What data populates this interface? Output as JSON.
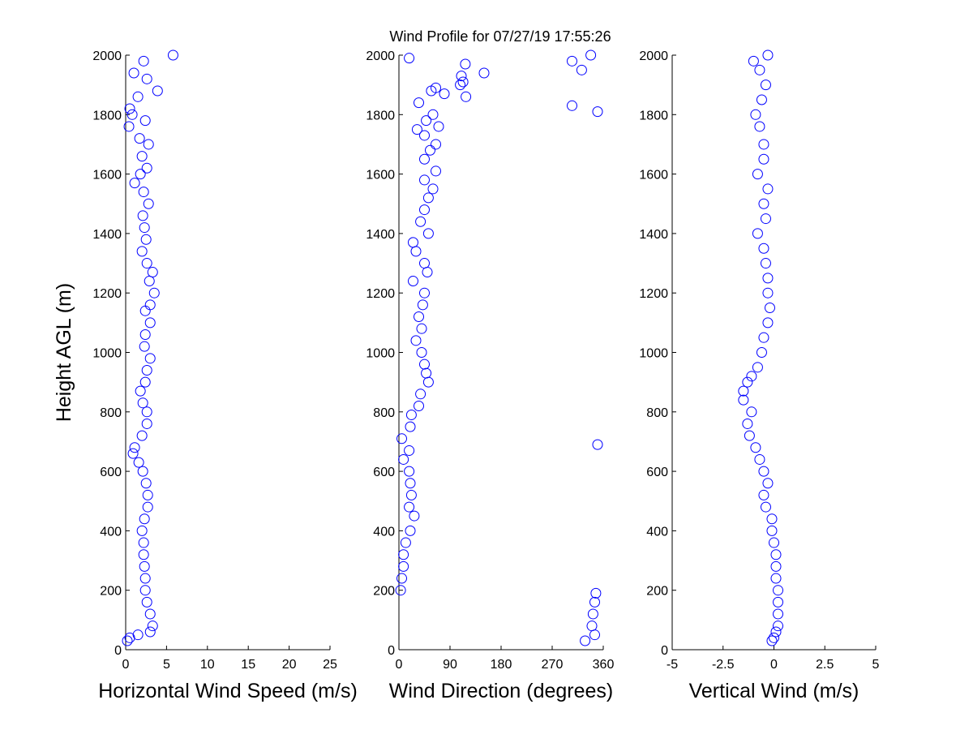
{
  "chart_data": [
    {
      "type": "scatter",
      "title": "Wind Profile for  07/27/19 17:55:26",
      "xlabel": "Horizontal Wind Speed (m/s)",
      "ylabel": "Height AGL (m)",
      "color": "#0000ff",
      "xlim": [
        0,
        25
      ],
      "xticks": [
        0,
        5,
        10,
        15,
        20,
        25
      ],
      "ylim": [
        0,
        2000
      ],
      "yticks": [
        0,
        200,
        400,
        600,
        800,
        1000,
        1200,
        1400,
        1600,
        1800,
        2000
      ],
      "x": [
        5.8,
        2.2,
        1.0,
        2.6,
        3.9,
        1.5,
        0.5,
        0.8,
        2.4,
        0.4,
        1.7,
        2.8,
        2.0,
        2.6,
        1.8,
        1.1,
        2.2,
        2.8,
        2.1,
        2.3,
        2.5,
        2.0,
        2.6,
        3.3,
        2.9,
        3.5,
        3.0,
        2.4,
        3.0,
        2.4,
        2.3,
        3.0,
        2.6,
        2.4,
        1.8,
        2.1,
        2.6,
        2.6,
        2.0,
        1.1,
        0.9,
        1.6,
        2.1,
        2.5,
        2.7,
        2.7,
        2.3,
        2.0,
        2.2,
        2.2,
        2.3,
        2.4,
        2.4,
        2.6,
        3.0,
        3.3,
        3.0,
        1.5,
        0.5,
        0.2
      ],
      "y": [
        2000,
        1980,
        1940,
        1920,
        1880,
        1860,
        1820,
        1800,
        1780,
        1760,
        1720,
        1700,
        1660,
        1620,
        1600,
        1570,
        1540,
        1500,
        1460,
        1420,
        1380,
        1340,
        1300,
        1270,
        1240,
        1200,
        1160,
        1140,
        1100,
        1060,
        1020,
        980,
        940,
        900,
        870,
        830,
        800,
        760,
        720,
        680,
        660,
        630,
        600,
        560,
        520,
        480,
        440,
        400,
        360,
        320,
        280,
        240,
        200,
        160,
        120,
        80,
        60,
        50,
        40,
        30
      ]
    },
    {
      "type": "scatter",
      "xlabel": "Wind Direction (degrees)",
      "color": "#0000ff",
      "xlim": [
        0,
        360
      ],
      "xticks": [
        0,
        90,
        180,
        270,
        360
      ],
      "ylim": [
        0,
        2000
      ],
      "yticks": [
        0,
        200,
        400,
        600,
        800,
        1000,
        1200,
        1400,
        1600,
        1800,
        2000
      ],
      "x": [
        338,
        18,
        305,
        117,
        322,
        150,
        110,
        113,
        108,
        65,
        57,
        80,
        118,
        35,
        305,
        350,
        60,
        48,
        70,
        32,
        45,
        65,
        55,
        45,
        65,
        45,
        60,
        52,
        45,
        38,
        52,
        25,
        30,
        45,
        50,
        25,
        45,
        42,
        35,
        40,
        30,
        40,
        45,
        48,
        52,
        38,
        35,
        22,
        20,
        5,
        350,
        18,
        8,
        18,
        20,
        22,
        18,
        27,
        20,
        12,
        8,
        8,
        5,
        3,
        347,
        345,
        342,
        340,
        345,
        328
      ],
      "y": [
        2000,
        1990,
        1980,
        1970,
        1950,
        1940,
        1930,
        1910,
        1900,
        1890,
        1880,
        1870,
        1860,
        1840,
        1830,
        1810,
        1800,
        1780,
        1760,
        1750,
        1730,
        1700,
        1680,
        1650,
        1610,
        1580,
        1550,
        1520,
        1480,
        1440,
        1400,
        1370,
        1340,
        1300,
        1270,
        1240,
        1200,
        1160,
        1120,
        1080,
        1040,
        1000,
        960,
        930,
        900,
        860,
        820,
        790,
        750,
        710,
        690,
        670,
        640,
        600,
        560,
        520,
        480,
        450,
        400,
        360,
        320,
        280,
        240,
        200,
        190,
        160,
        120,
        80,
        50,
        30
      ]
    },
    {
      "type": "scatter",
      "xlabel": "Vertical Wind (m/s)",
      "color": "#0000ff",
      "xlim": [
        -5,
        5
      ],
      "xticks": [
        -5,
        -2.5,
        0,
        2.5,
        5
      ],
      "ylim": [
        0,
        2000
      ],
      "yticks": [
        0,
        200,
        400,
        600,
        800,
        1000,
        1200,
        1400,
        1600,
        1800,
        2000
      ],
      "x": [
        -0.3,
        -1.0,
        -0.7,
        -0.4,
        -0.6,
        -0.9,
        -0.7,
        -0.5,
        -0.5,
        -0.8,
        -0.3,
        -0.5,
        -0.4,
        -0.8,
        -0.5,
        -0.4,
        -0.3,
        -0.3,
        -0.2,
        -0.3,
        -0.5,
        -0.6,
        -0.8,
        -1.1,
        -1.3,
        -1.5,
        -1.5,
        -1.1,
        -1.3,
        -1.2,
        -0.9,
        -0.7,
        -0.5,
        -0.3,
        -0.5,
        -0.4,
        -0.1,
        -0.1,
        0.0,
        0.1,
        0.1,
        0.1,
        0.2,
        0.2,
        0.2,
        0.2,
        0.1,
        0.0,
        -0.1
      ],
      "y": [
        2000,
        1980,
        1950,
        1900,
        1850,
        1800,
        1760,
        1700,
        1650,
        1600,
        1550,
        1500,
        1450,
        1400,
        1350,
        1300,
        1250,
        1200,
        1150,
        1100,
        1050,
        1000,
        950,
        920,
        900,
        870,
        840,
        800,
        760,
        720,
        680,
        640,
        600,
        560,
        520,
        480,
        440,
        400,
        360,
        320,
        280,
        240,
        200,
        160,
        120,
        80,
        60,
        40,
        30
      ]
    }
  ]
}
